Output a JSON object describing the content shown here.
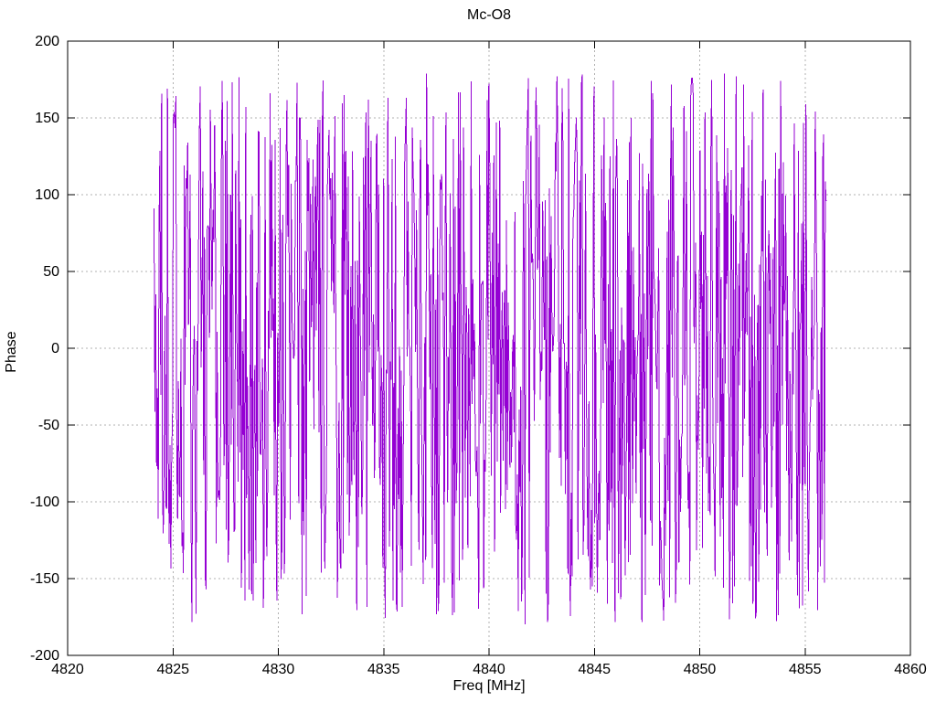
{
  "figure": {
    "title": "Mc-O8",
    "xlabel": "Freq [MHz]",
    "ylabel": "Phase"
  },
  "colors": {
    "background": "#ffffff",
    "axis_border": "#000000",
    "grid": "#b0b0b0",
    "text": "#000000",
    "line": "#9400d3"
  },
  "chart_data": {
    "type": "line",
    "title": "Mc-O8",
    "xlabel": "Freq [MHz]",
    "ylabel": "Phase",
    "xlim": [
      4820,
      4860
    ],
    "ylim": [
      -200,
      200
    ],
    "x_ticks": [
      4820,
      4825,
      4830,
      4835,
      4840,
      4845,
      4850,
      4855,
      4860
    ],
    "x_tick_labels": [
      "4820",
      "4825",
      "4830",
      "4835",
      "4840",
      "4845",
      "4850",
      "4855",
      "4860"
    ],
    "y_ticks": [
      -200,
      -150,
      -100,
      -50,
      0,
      50,
      100,
      150,
      200
    ],
    "y_tick_labels": [
      "-200",
      "-150",
      "-100",
      "-50",
      "0",
      "50",
      "100",
      "150",
      "200"
    ],
    "grid": true,
    "grid_style": "dotted",
    "legend": false,
    "series": [
      {
        "name": "phase",
        "color": "#9400d3",
        "description": "Wrapped phase noise: densely sampled values uniformly distributed between -180 and +180 degrees, connected with lines, producing near-vertical strokes across the band",
        "x_start": 4824.1,
        "x_end": 4856.0,
        "n_points": 800,
        "y_min": -180,
        "y_max": 180,
        "synthetic": true,
        "prng_seed": 20
      }
    ]
  }
}
